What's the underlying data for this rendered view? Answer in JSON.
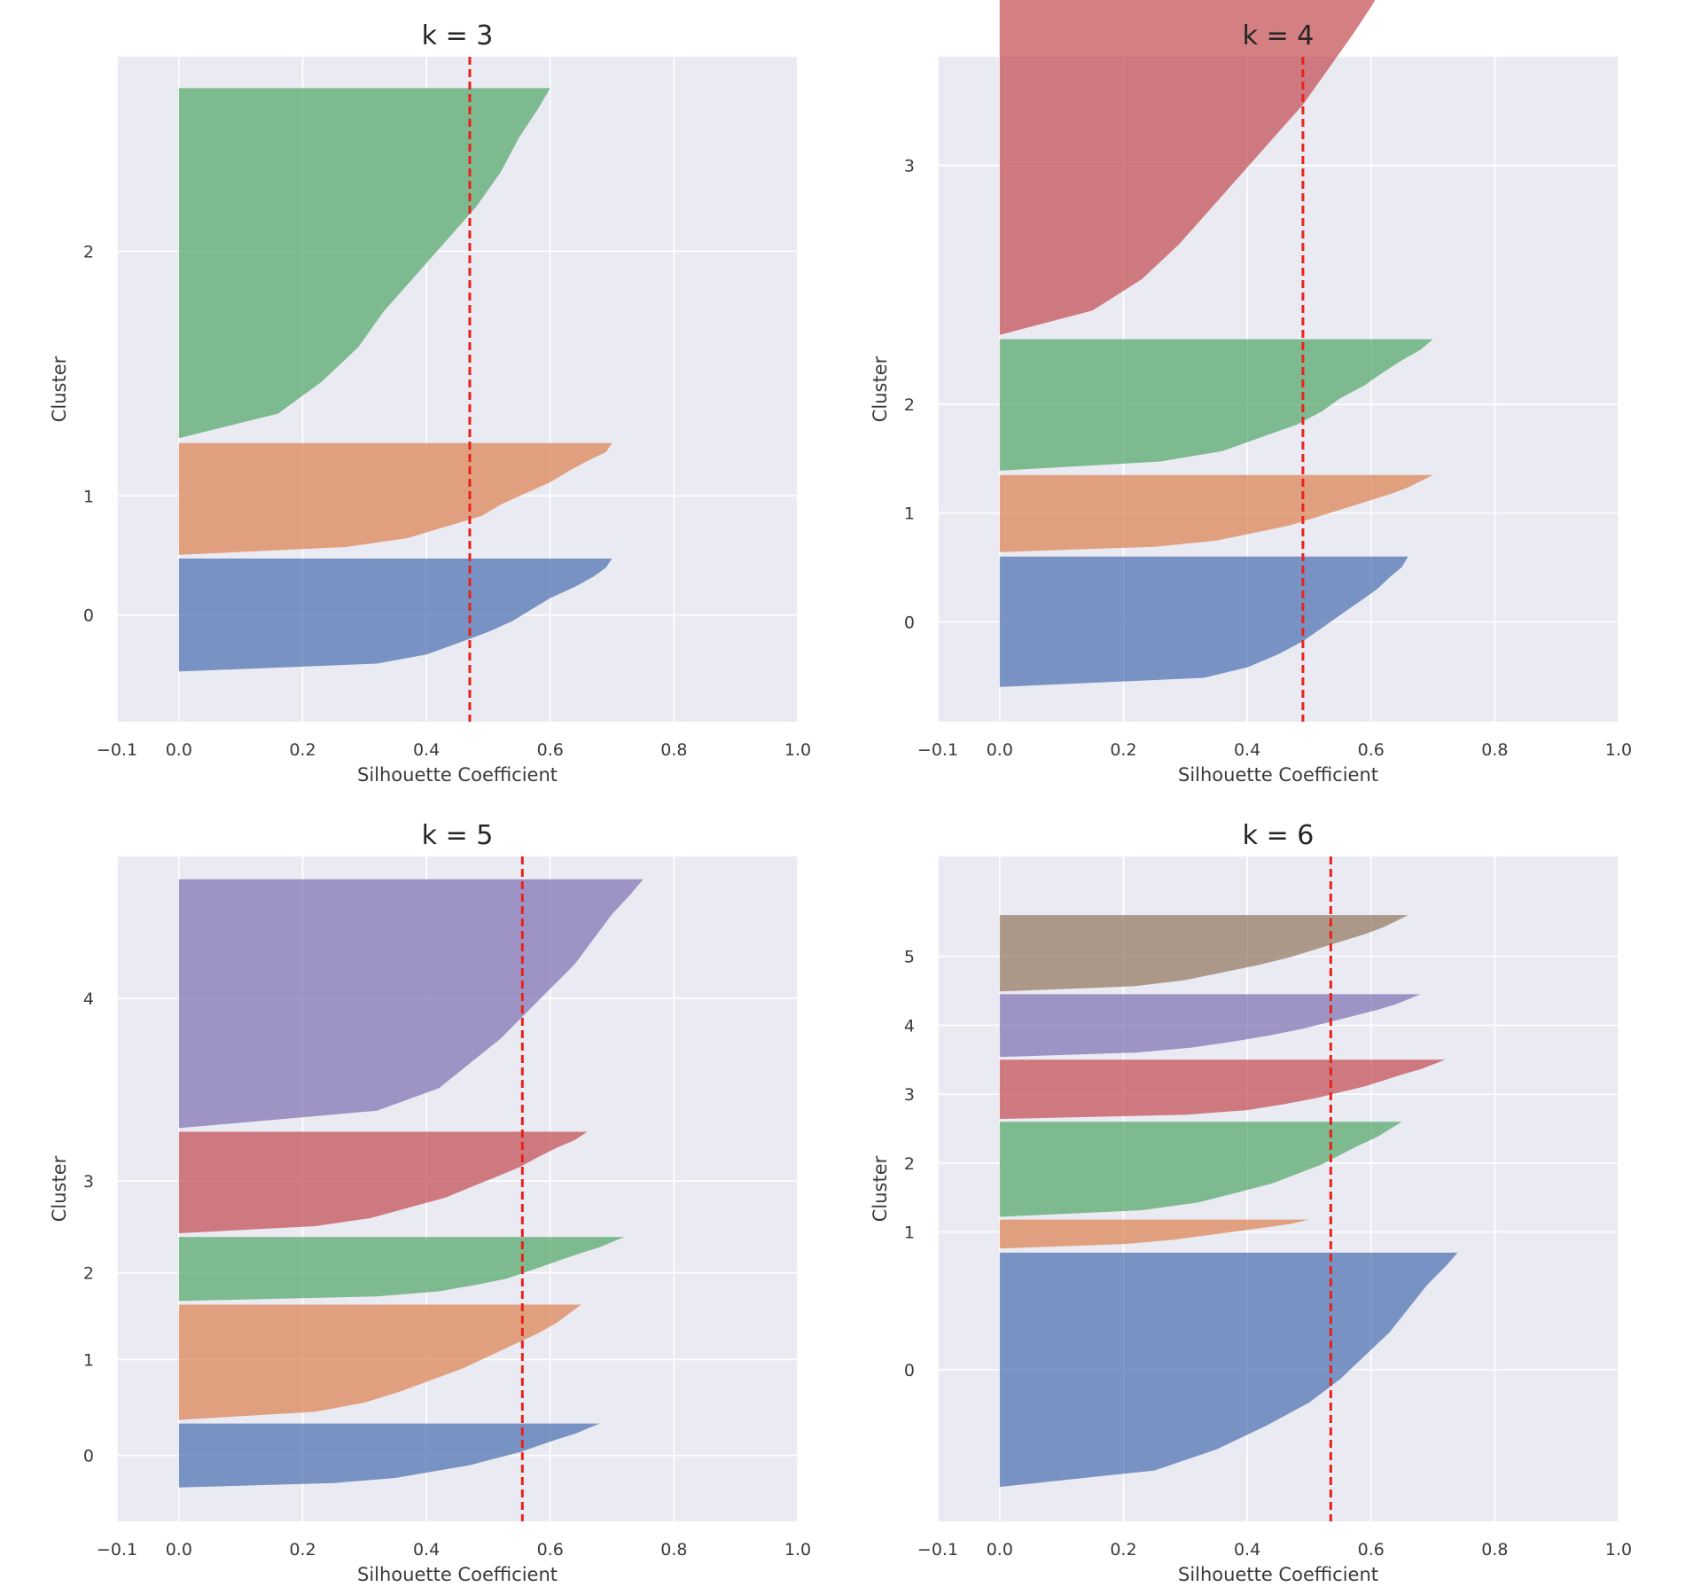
{
  "figure": {
    "background": "#ffffff",
    "axes_facecolor": "#eaeaf2",
    "grid_color": "#ffffff",
    "mean_line_color": "#e8221b",
    "palette": [
      "#4c72b0",
      "#dd8452",
      "#55a868",
      "#c44e52",
      "#8172b3",
      "#937860"
    ]
  },
  "chart_data": [
    {
      "type": "area",
      "subtype": "silhouette",
      "title": "k = 3",
      "xlabel": "Silhouette Coefficient",
      "ylabel": "Cluster",
      "xlim": [
        -0.1,
        1.0
      ],
      "xticks": [
        -0.1,
        0.0,
        0.2,
        0.4,
        0.6,
        0.8,
        1.0
      ],
      "xtick_labels": [
        "−0.1",
        "0.0",
        "0.2",
        "0.4",
        "0.6",
        "0.8",
        "1.0"
      ],
      "ylim": [
        -0.85,
        4.45
      ],
      "grid": true,
      "mean_silhouette": 0.47,
      "clusters": [
        {
          "label": "0",
          "center": 0.0,
          "bottom": -0.45,
          "top": 0.45,
          "profile": [
            [
              0.0,
              0.7
            ],
            [
              0.08,
              0.69
            ],
            [
              0.16,
              0.67
            ],
            [
              0.25,
              0.64
            ],
            [
              0.35,
              0.6
            ],
            [
              0.45,
              0.57
            ],
            [
              0.55,
              0.54
            ],
            [
              0.65,
              0.5
            ],
            [
              0.75,
              0.45
            ],
            [
              0.85,
              0.4
            ],
            [
              0.93,
              0.32
            ],
            [
              1.0,
              0.0
            ]
          ]
        },
        {
          "label": "1",
          "center": 0.95,
          "bottom": 0.48,
          "top": 1.37,
          "profile": [
            [
              0.0,
              0.7
            ],
            [
              0.08,
              0.69
            ],
            [
              0.16,
              0.66
            ],
            [
              0.25,
              0.63
            ],
            [
              0.35,
              0.6
            ],
            [
              0.45,
              0.56
            ],
            [
              0.55,
              0.52
            ],
            [
              0.65,
              0.49
            ],
            [
              0.75,
              0.43
            ],
            [
              0.85,
              0.37
            ],
            [
              0.93,
              0.27
            ],
            [
              1.0,
              0.0
            ]
          ]
        },
        {
          "label": "2",
          "center": 2.9,
          "bottom": 1.41,
          "top": 4.2,
          "profile": [
            [
              0.0,
              0.6
            ],
            [
              0.06,
              0.58
            ],
            [
              0.14,
              0.55
            ],
            [
              0.24,
              0.52
            ],
            [
              0.34,
              0.48
            ],
            [
              0.44,
              0.43
            ],
            [
              0.54,
              0.38
            ],
            [
              0.64,
              0.33
            ],
            [
              0.74,
              0.29
            ],
            [
              0.84,
              0.23
            ],
            [
              0.93,
              0.16
            ],
            [
              1.0,
              0.0
            ]
          ]
        }
      ]
    },
    {
      "type": "area",
      "subtype": "silhouette",
      "title": "k = 4",
      "xlabel": "Silhouette Coefficient",
      "ylabel": "Cluster",
      "xlim": [
        -0.1,
        1.0
      ],
      "xticks": [
        -0.1,
        0.0,
        0.2,
        0.4,
        0.6,
        0.8,
        1.0
      ],
      "xtick_labels": [
        "−0.1",
        "0.0",
        "0.2",
        "0.4",
        "0.6",
        "0.8",
        "1.0"
      ],
      "ylim": [
        -0.92,
        5.2
      ],
      "grid": true,
      "mean_silhouette": 0.49,
      "clusters": [
        {
          "label": "0",
          "center": 0.0,
          "bottom": -0.6,
          "top": 0.6,
          "profile": [
            [
              0.0,
              0.66
            ],
            [
              0.08,
              0.65
            ],
            [
              0.16,
              0.63
            ],
            [
              0.25,
              0.61
            ],
            [
              0.35,
              0.58
            ],
            [
              0.45,
              0.55
            ],
            [
              0.55,
              0.52
            ],
            [
              0.65,
              0.49
            ],
            [
              0.75,
              0.45
            ],
            [
              0.85,
              0.4
            ],
            [
              0.93,
              0.33
            ],
            [
              1.0,
              0.0
            ]
          ]
        },
        {
          "label": "1",
          "center": 1.0,
          "bottom": 0.64,
          "top": 1.35,
          "profile": [
            [
              0.0,
              0.7
            ],
            [
              0.08,
              0.68
            ],
            [
              0.16,
              0.66
            ],
            [
              0.25,
              0.63
            ],
            [
              0.35,
              0.59
            ],
            [
              0.45,
              0.55
            ],
            [
              0.55,
              0.51
            ],
            [
              0.65,
              0.47
            ],
            [
              0.75,
              0.41
            ],
            [
              0.85,
              0.35
            ],
            [
              0.93,
              0.25
            ],
            [
              1.0,
              0.0
            ]
          ]
        },
        {
          "label": "2",
          "center": 2.0,
          "bottom": 1.39,
          "top": 2.6,
          "profile": [
            [
              0.0,
              0.7
            ],
            [
              0.08,
              0.68
            ],
            [
              0.16,
              0.65
            ],
            [
              0.25,
              0.62
            ],
            [
              0.35,
              0.59
            ],
            [
              0.45,
              0.55
            ],
            [
              0.55,
              0.52
            ],
            [
              0.65,
              0.48
            ],
            [
              0.75,
              0.42
            ],
            [
              0.85,
              0.36
            ],
            [
              0.93,
              0.26
            ],
            [
              1.0,
              0.0
            ]
          ]
        },
        {
          "label": "3",
          "center": 4.2,
          "bottom": 2.64,
          "top": 5.85,
          "profile": [
            [
              0.0,
              0.62
            ],
            [
              0.06,
              0.6
            ],
            [
              0.14,
              0.57
            ],
            [
              0.24,
              0.53
            ],
            [
              0.34,
              0.49
            ],
            [
              0.44,
              0.44
            ],
            [
              0.54,
              0.39
            ],
            [
              0.64,
              0.34
            ],
            [
              0.74,
              0.29
            ],
            [
              0.84,
              0.23
            ],
            [
              0.93,
              0.15
            ],
            [
              1.0,
              0.0
            ]
          ]
        }
      ]
    },
    {
      "type": "area",
      "subtype": "silhouette",
      "title": "k = 5",
      "xlabel": "Silhouette Coefficient",
      "ylabel": "Cluster",
      "xlim": [
        -0.1,
        1.0
      ],
      "xticks": [
        -0.1,
        0.0,
        0.2,
        0.4,
        0.6,
        0.8,
        1.0
      ],
      "xtick_labels": [
        "−0.1",
        "0.0",
        "0.2",
        "0.4",
        "0.6",
        "0.8",
        "1.0"
      ],
      "ylim": [
        -0.72,
        6.55
      ],
      "grid": true,
      "mean_silhouette": 0.555,
      "clusters": [
        {
          "label": "0",
          "center": 0.0,
          "bottom": -0.35,
          "top": 0.35,
          "profile": [
            [
              0.0,
              0.68
            ],
            [
              0.08,
              0.66
            ],
            [
              0.16,
              0.64
            ],
            [
              0.25,
              0.61
            ],
            [
              0.35,
              0.58
            ],
            [
              0.45,
              0.55
            ],
            [
              0.55,
              0.51
            ],
            [
              0.65,
              0.47
            ],
            [
              0.75,
              0.41
            ],
            [
              0.85,
              0.35
            ],
            [
              0.93,
              0.25
            ],
            [
              1.0,
              0.0
            ]
          ]
        },
        {
          "label": "1",
          "center": 1.05,
          "bottom": 0.39,
          "top": 1.65,
          "profile": [
            [
              0.0,
              0.65
            ],
            [
              0.08,
              0.63
            ],
            [
              0.16,
              0.61
            ],
            [
              0.25,
              0.58
            ],
            [
              0.35,
              0.54
            ],
            [
              0.45,
              0.5
            ],
            [
              0.55,
              0.46
            ],
            [
              0.65,
              0.41
            ],
            [
              0.75,
              0.36
            ],
            [
              0.85,
              0.3
            ],
            [
              0.93,
              0.22
            ],
            [
              1.0,
              0.0
            ]
          ]
        },
        {
          "label": "2",
          "center": 2.0,
          "bottom": 1.69,
          "top": 2.39,
          "profile": [
            [
              0.0,
              0.72
            ],
            [
              0.08,
              0.7
            ],
            [
              0.16,
              0.68
            ],
            [
              0.25,
              0.65
            ],
            [
              0.35,
              0.62
            ],
            [
              0.45,
              0.59
            ],
            [
              0.55,
              0.56
            ],
            [
              0.65,
              0.53
            ],
            [
              0.75,
              0.48
            ],
            [
              0.85,
              0.42
            ],
            [
              0.93,
              0.32
            ],
            [
              1.0,
              0.0
            ]
          ]
        },
        {
          "label": "3",
          "center": 3.0,
          "bottom": 2.43,
          "top": 3.54,
          "profile": [
            [
              0.0,
              0.66
            ],
            [
              0.08,
              0.64
            ],
            [
              0.16,
              0.61
            ],
            [
              0.25,
              0.58
            ],
            [
              0.35,
              0.55
            ],
            [
              0.45,
              0.51
            ],
            [
              0.55,
              0.47
            ],
            [
              0.65,
              0.43
            ],
            [
              0.75,
              0.37
            ],
            [
              0.85,
              0.31
            ],
            [
              0.93,
              0.22
            ],
            [
              1.0,
              0.0
            ]
          ]
        },
        {
          "label": "4",
          "center": 5.0,
          "bottom": 3.58,
          "top": 6.3,
          "profile": [
            [
              0.0,
              0.75
            ],
            [
              0.06,
              0.73
            ],
            [
              0.14,
              0.7
            ],
            [
              0.24,
              0.67
            ],
            [
              0.34,
              0.64
            ],
            [
              0.44,
              0.6
            ],
            [
              0.54,
              0.56
            ],
            [
              0.64,
              0.52
            ],
            [
              0.74,
              0.47
            ],
            [
              0.84,
              0.42
            ],
            [
              0.93,
              0.32
            ],
            [
              1.0,
              0.0
            ]
          ]
        }
      ]
    },
    {
      "type": "area",
      "subtype": "silhouette",
      "title": "k = 6",
      "xlabel": "Silhouette Coefficient",
      "ylabel": "Cluster",
      "xlim": [
        -0.1,
        1.0
      ],
      "xticks": [
        -0.1,
        0.0,
        0.2,
        0.4,
        0.6,
        0.8,
        1.0
      ],
      "xtick_labels": [
        "−0.1",
        "0.0",
        "0.2",
        "0.4",
        "0.6",
        "0.8",
        "1.0"
      ],
      "ylim": [
        -2.2,
        7.45
      ],
      "grid": true,
      "mean_silhouette": 0.535,
      "clusters": [
        {
          "label": "0",
          "center": 0.0,
          "bottom": -1.7,
          "top": 1.7,
          "profile": [
            [
              0.0,
              0.74
            ],
            [
              0.06,
              0.72
            ],
            [
              0.14,
              0.69
            ],
            [
              0.24,
              0.66
            ],
            [
              0.34,
              0.63
            ],
            [
              0.44,
              0.59
            ],
            [
              0.54,
              0.55
            ],
            [
              0.64,
              0.5
            ],
            [
              0.74,
              0.43
            ],
            [
              0.84,
              0.35
            ],
            [
              0.93,
              0.25
            ],
            [
              1.0,
              0.0
            ]
          ]
        },
        {
          "label": "1",
          "center": 2.0,
          "bottom": 1.76,
          "top": 2.18,
          "profile": [
            [
              0.0,
              0.5
            ],
            [
              0.15,
              0.47
            ],
            [
              0.3,
              0.42
            ],
            [
              0.5,
              0.35
            ],
            [
              0.7,
              0.28
            ],
            [
              0.85,
              0.2
            ],
            [
              1.0,
              0.0
            ]
          ]
        },
        {
          "label": "2",
          "center": 3.0,
          "bottom": 2.22,
          "top": 3.6,
          "profile": [
            [
              0.0,
              0.65
            ],
            [
              0.08,
              0.63
            ],
            [
              0.16,
              0.61
            ],
            [
              0.25,
              0.58
            ],
            [
              0.35,
              0.55
            ],
            [
              0.45,
              0.52
            ],
            [
              0.55,
              0.48
            ],
            [
              0.65,
              0.44
            ],
            [
              0.75,
              0.38
            ],
            [
              0.85,
              0.32
            ],
            [
              0.93,
              0.23
            ],
            [
              1.0,
              0.0
            ]
          ]
        },
        {
          "label": "3",
          "center": 4.0,
          "bottom": 3.64,
          "top": 4.5,
          "profile": [
            [
              0.0,
              0.72
            ],
            [
              0.08,
              0.7
            ],
            [
              0.16,
              0.68
            ],
            [
              0.25,
              0.65
            ],
            [
              0.35,
              0.62
            ],
            [
              0.45,
              0.59
            ],
            [
              0.55,
              0.55
            ],
            [
              0.65,
              0.51
            ],
            [
              0.75,
              0.46
            ],
            [
              0.85,
              0.4
            ],
            [
              0.93,
              0.3
            ],
            [
              1.0,
              0.0
            ]
          ]
        },
        {
          "label": "4",
          "center": 5.0,
          "bottom": 4.54,
          "top": 5.45,
          "profile": [
            [
              0.0,
              0.68
            ],
            [
              0.08,
              0.66
            ],
            [
              0.16,
              0.64
            ],
            [
              0.25,
              0.61
            ],
            [
              0.35,
              0.57
            ],
            [
              0.45,
              0.53
            ],
            [
              0.55,
              0.49
            ],
            [
              0.65,
              0.44
            ],
            [
              0.75,
              0.38
            ],
            [
              0.85,
              0.31
            ],
            [
              0.93,
              0.22
            ],
            [
              1.0,
              0.0
            ]
          ]
        },
        {
          "label": "5",
          "center": 6.0,
          "bottom": 5.49,
          "top": 6.6,
          "profile": [
            [
              0.0,
              0.66
            ],
            [
              0.08,
              0.64
            ],
            [
              0.16,
              0.62
            ],
            [
              0.25,
              0.59
            ],
            [
              0.35,
              0.55
            ],
            [
              0.45,
              0.51
            ],
            [
              0.55,
              0.47
            ],
            [
              0.65,
              0.42
            ],
            [
              0.75,
              0.36
            ],
            [
              0.85,
              0.3
            ],
            [
              0.93,
              0.22
            ],
            [
              1.0,
              0.0
            ]
          ]
        }
      ]
    }
  ]
}
